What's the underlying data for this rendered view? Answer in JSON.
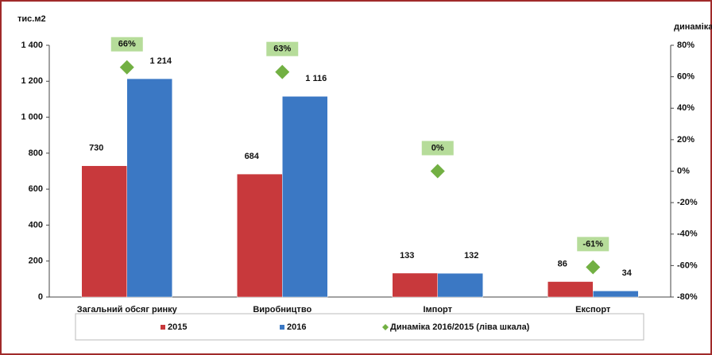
{
  "chart_data": {
    "type": "bar",
    "y_label": "тис.м2",
    "y2_label": "динаміка",
    "categories": [
      "Загальний обсяг ринку",
      "Виробництво",
      "Імпорт",
      "Експорт"
    ],
    "series": [
      {
        "name": "2015",
        "color": "#c8393c",
        "values": [
          730,
          684,
          133,
          86
        ]
      },
      {
        "name": "2016",
        "color": "#3b78c4",
        "values": [
          1214,
          1116,
          132,
          34
        ],
        "value_labels": [
          "1 214",
          "1 116",
          "132",
          "34"
        ]
      },
      {
        "name": "Динаміка 2016/2015 (ліва шкала)",
        "type": "scatter",
        "axis": "y2",
        "color": "#72b043",
        "label_color": "#b6dc9a",
        "values": [
          66,
          63,
          0,
          -61
        ],
        "value_labels": [
          "66%",
          "63%",
          "0%",
          "-61%"
        ]
      }
    ],
    "ylim": [
      0,
      1400
    ],
    "yticks": [
      0,
      200,
      400,
      600,
      800,
      {
        "value": 1000,
        "label": "1 000"
      },
      {
        "value": 1200,
        "label": "1 200"
      },
      {
        "value": 1400,
        "label": "1 400"
      }
    ],
    "y2lim": [
      -80,
      80
    ],
    "y2ticks": [
      {
        "value": -80,
        "label": "-80%"
      },
      {
        "value": -60,
        "label": "-60%"
      },
      {
        "value": -40,
        "label": "-40%"
      },
      {
        "value": -20,
        "label": "-20%"
      },
      {
        "value": 0,
        "label": "0%"
      },
      {
        "value": 20,
        "label": "20%"
      },
      {
        "value": 40,
        "label": "40%"
      },
      {
        "value": 60,
        "label": "60%"
      },
      {
        "value": 80,
        "label": "80%"
      }
    ],
    "legend": "bottom"
  }
}
